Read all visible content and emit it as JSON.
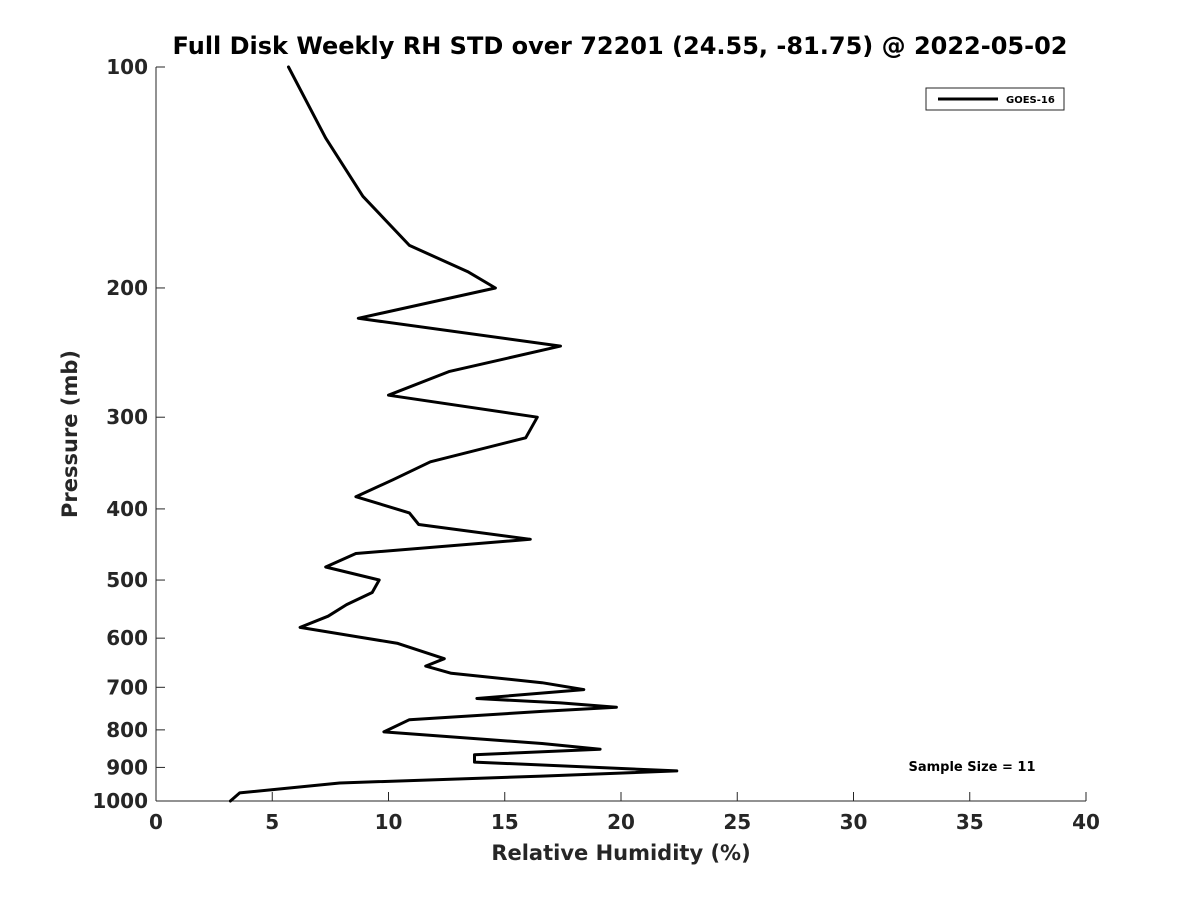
{
  "chart_data": {
    "type": "line",
    "title": "Full Disk Weekly RH STD over 72201 (24.55, -81.75) @ 2022-05-02",
    "xlabel": "Relative Humidity (%)",
    "ylabel": "Pressure (mb)",
    "xlim": [
      0,
      40
    ],
    "ylim": [
      100,
      1000
    ],
    "yscale": "log",
    "y_reversed": true,
    "grid": false,
    "x_ticks": [
      0,
      5,
      10,
      15,
      20,
      25,
      30,
      35,
      40
    ],
    "y_ticks": [
      100,
      200,
      300,
      400,
      500,
      600,
      700,
      800,
      900,
      1000
    ],
    "legend": {
      "position": "top-right",
      "entries": [
        "GOES-16"
      ]
    },
    "annotations": [
      "Sample Size = 11"
    ],
    "series": [
      {
        "name": "GOES-16",
        "color": "#000000",
        "points": [
          [
            5.7,
            100
          ],
          [
            7.3,
            125
          ],
          [
            8.9,
            150
          ],
          [
            10.9,
            175
          ],
          [
            13.4,
            190
          ],
          [
            14.6,
            200
          ],
          [
            8.7,
            220
          ],
          [
            17.4,
            240
          ],
          [
            12.6,
            260
          ],
          [
            10.0,
            280
          ],
          [
            16.4,
            300
          ],
          [
            15.9,
            320
          ],
          [
            11.8,
            345
          ],
          [
            10.2,
            365
          ],
          [
            8.6,
            385
          ],
          [
            10.9,
            405
          ],
          [
            11.3,
            420
          ],
          [
            16.1,
            440
          ],
          [
            8.6,
            460
          ],
          [
            7.3,
            480
          ],
          [
            9.6,
            500
          ],
          [
            9.3,
            520
          ],
          [
            8.2,
            540
          ],
          [
            7.4,
            560
          ],
          [
            6.2,
            580
          ],
          [
            10.4,
            610
          ],
          [
            12.4,
            640
          ],
          [
            11.6,
            655
          ],
          [
            12.7,
            670
          ],
          [
            16.6,
            690
          ],
          [
            18.4,
            705
          ],
          [
            13.8,
            725
          ],
          [
            17.4,
            735
          ],
          [
            19.8,
            745
          ],
          [
            16.6,
            755
          ],
          [
            10.9,
            775
          ],
          [
            9.8,
            805
          ],
          [
            16.6,
            835
          ],
          [
            19.1,
            850
          ],
          [
            13.7,
            865
          ],
          [
            13.7,
            885
          ],
          [
            22.4,
            910
          ],
          [
            16.6,
            925
          ],
          [
            7.9,
            945
          ],
          [
            3.6,
            975
          ],
          [
            3.2,
            1000
          ]
        ]
      }
    ]
  }
}
